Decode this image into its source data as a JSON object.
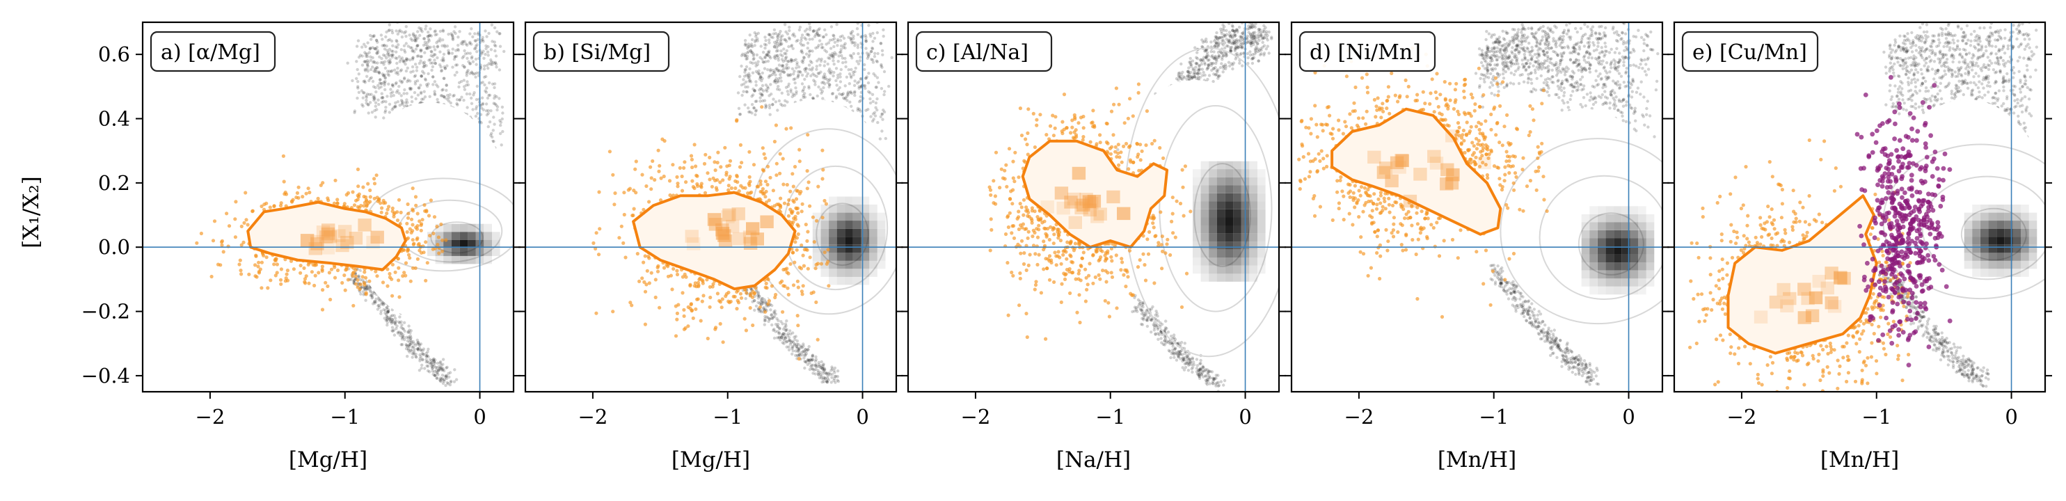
{
  "figure": {
    "ylabel": "[X₁/X₂]",
    "y_tick_labels": [
      "0.6",
      "0.4",
      "0.2",
      "0.0",
      "−0.2",
      "−0.4"
    ],
    "y_ticks": [
      0.6,
      0.4,
      0.2,
      0.0,
      -0.2,
      -0.4
    ],
    "colors": {
      "background_stars": "#000000",
      "sample_points": "#f5931e",
      "sample_contour": "#f5820f",
      "extra_points": "#8b1a7a",
      "reference_lines": "#3a7fb8"
    }
  },
  "chart_data": [
    {
      "type": "scatter",
      "panel_label": "a) [α/Mg]",
      "xlabel": "[Mg/H]",
      "xlim": [
        -2.5,
        0.25
      ],
      "ylim": [
        -0.45,
        0.7
      ],
      "x_ticks": [
        -2,
        -1,
        0
      ],
      "x_tick_labels": [
        "−2",
        "−1",
        "0"
      ],
      "ref_lines": {
        "x": 0,
        "y": 0
      },
      "orange_cloud": {
        "x_mean": -1.05,
        "x_sd": 0.35,
        "y_mean": 0.03,
        "y_sd": 0.07,
        "x_min": -2.1,
        "x_max": -0.25
      },
      "orange_contour": [
        [
          -1.72,
          0.05
        ],
        [
          -1.6,
          0.11
        ],
        [
          -1.45,
          0.12
        ],
        [
          -1.2,
          0.14
        ],
        [
          -1.0,
          0.12
        ],
        [
          -0.85,
          0.11
        ],
        [
          -0.7,
          0.09
        ],
        [
          -0.58,
          0.06
        ],
        [
          -0.55,
          0.02
        ],
        [
          -0.62,
          -0.03
        ],
        [
          -0.72,
          -0.07
        ],
        [
          -0.9,
          -0.06
        ],
        [
          -1.1,
          -0.05
        ],
        [
          -1.35,
          -0.04
        ],
        [
          -1.55,
          -0.02
        ],
        [
          -1.7,
          0.0
        ]
      ],
      "black_core": {
        "x": -0.12,
        "y": 0.01,
        "x_sd": 0.12,
        "y_sd": 0.03
      },
      "black_band": [
        [
          -0.9,
          0.4,
          0.63
        ],
        [
          -0.75,
          0.41,
          0.66
        ],
        [
          -0.6,
          0.4,
          0.67
        ],
        [
          -0.45,
          0.36,
          0.68
        ],
        [
          -0.3,
          0.32,
          0.68
        ],
        [
          -0.15,
          0.28,
          0.68
        ],
        [
          0.0,
          0.24,
          0.68
        ],
        [
          0.15,
          0.22,
          0.68
        ]
      ],
      "black_lower": [
        [
          -0.95,
          -0.05,
          -0.1
        ],
        [
          -0.8,
          -0.12,
          -0.18
        ],
        [
          -0.65,
          -0.2,
          -0.26
        ],
        [
          -0.5,
          -0.28,
          -0.34
        ],
        [
          -0.35,
          -0.34,
          -0.4
        ],
        [
          -0.2,
          -0.38,
          -0.44
        ]
      ]
    },
    {
      "type": "scatter",
      "panel_label": "b) [Si/Mg]",
      "xlabel": "[Mg/H]",
      "xlim": [
        -2.5,
        0.25
      ],
      "ylim": [
        -0.45,
        0.7
      ],
      "x_ticks": [
        -2,
        -1,
        0
      ],
      "x_tick_labels": [
        "−2",
        "−1",
        "0"
      ],
      "ref_lines": {
        "x": 0,
        "y": 0
      },
      "orange_cloud": {
        "x_mean": -1.0,
        "x_sd": 0.35,
        "y_mean": 0.04,
        "y_sd": 0.12,
        "x_min": -2.0,
        "x_max": -0.25
      },
      "orange_contour": [
        [
          -1.7,
          0.08
        ],
        [
          -1.55,
          0.13
        ],
        [
          -1.35,
          0.16
        ],
        [
          -1.15,
          0.16
        ],
        [
          -0.95,
          0.17
        ],
        [
          -0.75,
          0.14
        ],
        [
          -0.6,
          0.1
        ],
        [
          -0.5,
          0.05
        ],
        [
          -0.55,
          -0.02
        ],
        [
          -0.65,
          -0.07
        ],
        [
          -0.8,
          -0.12
        ],
        [
          -0.95,
          -0.13
        ],
        [
          -1.1,
          -0.1
        ],
        [
          -1.3,
          -0.07
        ],
        [
          -1.5,
          -0.04
        ],
        [
          -1.65,
          0.0
        ]
      ],
      "black_core": {
        "x": -0.1,
        "y": 0.02,
        "x_sd": 0.12,
        "y_sd": 0.06
      },
      "black_band": [
        [
          -0.9,
          0.4,
          0.63
        ],
        [
          -0.75,
          0.41,
          0.66
        ],
        [
          -0.6,
          0.4,
          0.67
        ],
        [
          -0.45,
          0.36,
          0.68
        ],
        [
          -0.3,
          0.32,
          0.68
        ],
        [
          -0.15,
          0.28,
          0.68
        ],
        [
          0.0,
          0.24,
          0.68
        ],
        [
          0.15,
          0.22,
          0.68
        ]
      ],
      "black_lower": [
        [
          -0.95,
          -0.05,
          -0.1
        ],
        [
          -0.8,
          -0.12,
          -0.18
        ],
        [
          -0.65,
          -0.2,
          -0.26
        ],
        [
          -0.5,
          -0.28,
          -0.34
        ],
        [
          -0.35,
          -0.34,
          -0.4
        ],
        [
          -0.2,
          -0.38,
          -0.44
        ]
      ]
    },
    {
      "type": "scatter",
      "panel_label": "c) [Al/Na]",
      "xlabel": "[Na/H]",
      "xlim": [
        -2.5,
        0.25
      ],
      "ylim": [
        -0.45,
        0.7
      ],
      "x_ticks": [
        -2,
        -1,
        0
      ],
      "x_tick_labels": [
        "−2",
        "−1",
        "0"
      ],
      "ref_lines": {
        "x": 0,
        "y": 0
      },
      "orange_cloud": {
        "x_mean": -1.2,
        "x_sd": 0.3,
        "y_mean": 0.14,
        "y_sd": 0.13,
        "x_min": -1.9,
        "x_max": -0.4
      },
      "orange_contour": [
        [
          -1.6,
          0.28
        ],
        [
          -1.45,
          0.33
        ],
        [
          -1.25,
          0.33
        ],
        [
          -1.05,
          0.3
        ],
        [
          -0.95,
          0.24
        ],
        [
          -0.8,
          0.22
        ],
        [
          -0.68,
          0.26
        ],
        [
          -0.58,
          0.24
        ],
        [
          -0.6,
          0.16
        ],
        [
          -0.7,
          0.12
        ],
        [
          -0.75,
          0.05
        ],
        [
          -0.85,
          -0.0
        ],
        [
          -1.0,
          0.02
        ],
        [
          -1.15,
          0.0
        ],
        [
          -1.3,
          0.04
        ],
        [
          -1.45,
          0.1
        ],
        [
          -1.6,
          0.15
        ],
        [
          -1.65,
          0.22
        ]
      ],
      "black_core": {
        "x": -0.12,
        "y": 0.08,
        "x_sd": 0.13,
        "y_sd": 0.1
      },
      "black_band": [
        [
          -0.9,
          0.22,
          0.3
        ],
        [
          -0.75,
          0.26,
          0.36
        ],
        [
          -0.6,
          0.34,
          0.46
        ],
        [
          -0.45,
          0.42,
          0.55
        ],
        [
          -0.3,
          0.48,
          0.63
        ],
        [
          -0.15,
          0.54,
          0.68
        ],
        [
          0.0,
          0.58,
          0.68
        ],
        [
          0.15,
          0.6,
          0.68
        ]
      ],
      "black_lower": [
        [
          -0.8,
          -0.15,
          -0.2
        ],
        [
          -0.65,
          -0.22,
          -0.28
        ],
        [
          -0.5,
          -0.29,
          -0.35
        ],
        [
          -0.35,
          -0.35,
          -0.41
        ],
        [
          -0.2,
          -0.39,
          -0.44
        ]
      ]
    },
    {
      "type": "scatter",
      "panel_label": "d) [Ni/Mn]",
      "xlabel": "[Mn/H]",
      "xlim": [
        -2.5,
        0.25
      ],
      "ylim": [
        -0.45,
        0.7
      ],
      "x_ticks": [
        -2,
        -1,
        0
      ],
      "x_tick_labels": [
        "−2",
        "−1",
        "0"
      ],
      "ref_lines": {
        "x": 0,
        "y": 0
      },
      "orange_cloud": {
        "x_mean": -1.55,
        "x_sd": 0.4,
        "y_mean": 0.26,
        "y_sd": 0.12,
        "x_min": -2.45,
        "x_max": -0.6
      },
      "orange_contour": [
        [
          -2.2,
          0.3
        ],
        [
          -2.05,
          0.36
        ],
        [
          -1.85,
          0.38
        ],
        [
          -1.65,
          0.43
        ],
        [
          -1.45,
          0.41
        ],
        [
          -1.3,
          0.34
        ],
        [
          -1.2,
          0.26
        ],
        [
          -1.05,
          0.2
        ],
        [
          -0.95,
          0.12
        ],
        [
          -0.97,
          0.06
        ],
        [
          -1.1,
          0.04
        ],
        [
          -1.3,
          0.08
        ],
        [
          -1.5,
          0.12
        ],
        [
          -1.7,
          0.16
        ],
        [
          -1.9,
          0.19
        ],
        [
          -2.05,
          0.21
        ],
        [
          -2.2,
          0.25
        ]
      ],
      "black_core": {
        "x": -0.08,
        "y": -0.01,
        "x_sd": 0.15,
        "y_sd": 0.06
      },
      "black_band": [
        [
          -1.1,
          0.45,
          0.6
        ],
        [
          -0.95,
          0.5,
          0.66
        ],
        [
          -0.8,
          0.52,
          0.68
        ],
        [
          -0.65,
          0.48,
          0.68
        ],
        [
          -0.5,
          0.42,
          0.68
        ],
        [
          -0.35,
          0.37,
          0.68
        ],
        [
          -0.2,
          0.34,
          0.68
        ],
        [
          -0.05,
          0.32,
          0.68
        ],
        [
          0.15,
          0.3,
          0.68
        ]
      ],
      "black_lower": [
        [
          -1.0,
          -0.05,
          -0.1
        ],
        [
          -0.85,
          -0.12,
          -0.18
        ],
        [
          -0.7,
          -0.2,
          -0.26
        ],
        [
          -0.55,
          -0.27,
          -0.33
        ],
        [
          -0.4,
          -0.33,
          -0.39
        ],
        [
          -0.25,
          -0.38,
          -0.44
        ]
      ]
    },
    {
      "type": "scatter",
      "panel_label": "e) [Cu/Mn]",
      "xlabel": "[Mn/H]",
      "xlim": [
        -2.5,
        0.25
      ],
      "ylim": [
        -0.45,
        0.7
      ],
      "x_ticks": [
        -2,
        -1,
        0
      ],
      "x_tick_labels": [
        "−2",
        "−1",
        "0"
      ],
      "ref_lines": {
        "x": 0,
        "y": 0
      },
      "orange_cloud": {
        "x_mean": -1.5,
        "x_sd": 0.4,
        "y_mean": -0.14,
        "y_sd": 0.14,
        "x_min": -2.4,
        "x_max": -0.75
      },
      "orange_contour": [
        [
          -2.1,
          -0.15
        ],
        [
          -2.05,
          -0.05
        ],
        [
          -1.9,
          0.0
        ],
        [
          -1.7,
          -0.01
        ],
        [
          -1.5,
          0.02
        ],
        [
          -1.3,
          0.09
        ],
        [
          -1.1,
          0.16
        ],
        [
          -1.02,
          0.1
        ],
        [
          -1.08,
          0.04
        ],
        [
          -1.0,
          -0.05
        ],
        [
          -1.05,
          -0.15
        ],
        [
          -1.12,
          -0.22
        ],
        [
          -1.25,
          -0.27
        ],
        [
          -1.5,
          -0.3
        ],
        [
          -1.75,
          -0.33
        ],
        [
          -1.95,
          -0.3
        ],
        [
          -2.1,
          -0.25
        ]
      ],
      "black_core": {
        "x": -0.08,
        "y": 0.02,
        "x_sd": 0.15,
        "y_sd": 0.05
      },
      "black_band": [
        [
          -0.9,
          0.4,
          0.63
        ],
        [
          -0.75,
          0.41,
          0.66
        ],
        [
          -0.6,
          0.4,
          0.67
        ],
        [
          -0.45,
          0.38,
          0.68
        ],
        [
          -0.3,
          0.35,
          0.68
        ],
        [
          -0.15,
          0.32,
          0.68
        ],
        [
          0.0,
          0.3,
          0.68
        ],
        [
          0.15,
          0.28,
          0.68
        ]
      ],
      "black_lower": [
        [
          -0.95,
          -0.05,
          -0.1
        ],
        [
          -0.8,
          -0.12,
          -0.18
        ],
        [
          -0.65,
          -0.2,
          -0.26
        ],
        [
          -0.5,
          -0.28,
          -0.34
        ],
        [
          -0.35,
          -0.34,
          -0.4
        ],
        [
          -0.2,
          -0.38,
          -0.44
        ]
      ],
      "purple_cloud": {
        "x_mean": -0.8,
        "x_sd": 0.14,
        "y_mean": 0.06,
        "y_sd": 0.18,
        "x_min": -1.15,
        "x_max": -0.45,
        "y_min": -0.42,
        "y_max": 0.55
      }
    }
  ]
}
